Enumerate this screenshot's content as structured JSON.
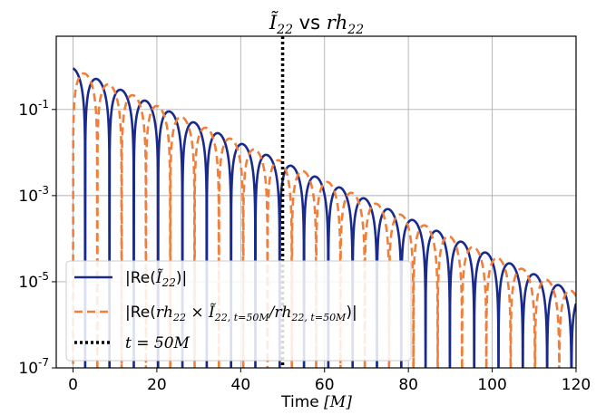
{
  "chart_data": {
    "type": "line",
    "title": {
      "main": "Ĩ",
      "sub": "22",
      "mid": " vs ",
      "rh": "rh",
      "rh_sub": "22"
    },
    "xlabel": {
      "text": "Time ",
      "unit": "[M]"
    },
    "xlim": [
      -4,
      120
    ],
    "ylim_log10": [
      -7,
      0.7
    ],
    "yscale": "log",
    "grid": true,
    "legend_position": "lower-left",
    "x_ticks": [
      0,
      20,
      40,
      60,
      80,
      100,
      120
    ],
    "x_tick_labels": [
      "0",
      "20",
      "40",
      "60",
      "80",
      "100",
      "120"
    ],
    "y_ticks_log10": [
      -7,
      -5,
      -3,
      -1
    ],
    "y_tick_labels": [
      {
        "base": "10",
        "exp": "-7"
      },
      {
        "base": "10",
        "exp": "-5"
      },
      {
        "base": "10",
        "exp": "-3"
      },
      {
        "base": "10",
        "exp": "-1"
      }
    ],
    "decay_rate_per_M": 0.1,
    "oscillation_period_M": 11.6,
    "series": [
      {
        "name": "|Re(Ĩ22)|",
        "color": "#1a2a8a",
        "style": "solid",
        "amplitude_at_t0": 0.9,
        "first_zero_M": 2.9
      },
      {
        "name": "|Re(rh22 × Ĩ22,t=50M / rh22,t=50M)|",
        "color": "#f07f3c",
        "style": "dashed",
        "amplitude_at_t0": 0.9,
        "first_zero_M": 0.0
      }
    ],
    "annotation": {
      "type": "vline",
      "x": 50,
      "color": "#000000",
      "style": "dotted",
      "label": "t = 50M"
    },
    "legend": [
      {
        "prefix": "|Re(",
        "math": "Ĩ",
        "sub": "22",
        "suffix": ")|"
      },
      {
        "prefix": "|Re(",
        "math": "rh",
        "sub": "22",
        "mid": " × Ĩ",
        "sub2": "22, t=50M",
        "mid2": "/rh",
        "sub3": "22, t=50M",
        "suffix": ")|"
      },
      {
        "prefix": "",
        "math": "t",
        "mid": " = 50",
        "math2": "M",
        "suffix": ""
      }
    ]
  }
}
